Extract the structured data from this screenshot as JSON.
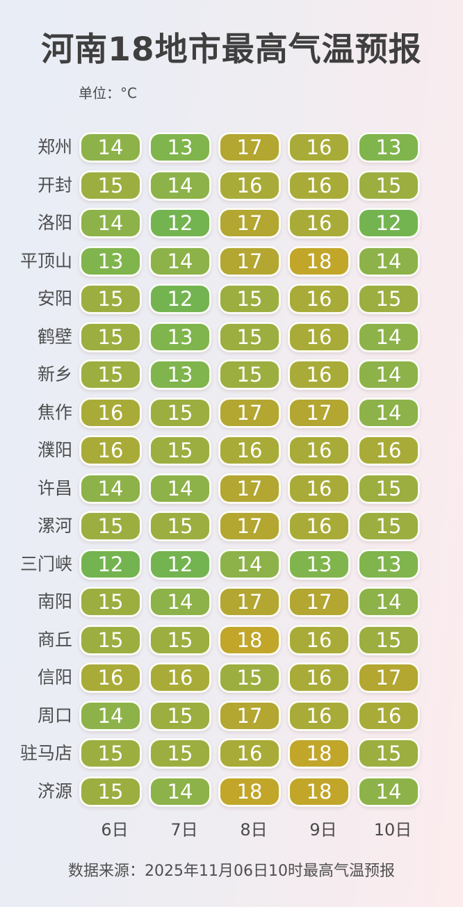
{
  "title": "河南18地市最高气温预报",
  "unit_label": "单位：°C",
  "source": "数据来源：2025年11月06日10时最高气温预报",
  "chart_data": {
    "type": "heatmap",
    "title": "河南18地市最高气温预报",
    "unit": "°C",
    "columns": [
      "6日",
      "7日",
      "8日",
      "9日",
      "10日"
    ],
    "rows": [
      {
        "city": "郑州",
        "values": [
          14,
          13,
          17,
          16,
          13
        ]
      },
      {
        "city": "开封",
        "values": [
          15,
          14,
          16,
          16,
          15
        ]
      },
      {
        "city": "洛阳",
        "values": [
          14,
          12,
          17,
          16,
          12
        ]
      },
      {
        "city": "平顶山",
        "values": [
          13,
          14,
          17,
          18,
          14
        ]
      },
      {
        "city": "安阳",
        "values": [
          15,
          12,
          15,
          16,
          15
        ]
      },
      {
        "city": "鹤壁",
        "values": [
          15,
          13,
          15,
          16,
          14
        ]
      },
      {
        "city": "新乡",
        "values": [
          15,
          13,
          15,
          16,
          14
        ]
      },
      {
        "city": "焦作",
        "values": [
          16,
          15,
          17,
          17,
          14
        ]
      },
      {
        "city": "濮阳",
        "values": [
          16,
          15,
          16,
          16,
          16
        ]
      },
      {
        "city": "许昌",
        "values": [
          14,
          14,
          17,
          16,
          15
        ]
      },
      {
        "city": "漯河",
        "values": [
          15,
          15,
          17,
          16,
          15
        ]
      },
      {
        "city": "三门峡",
        "values": [
          12,
          12,
          14,
          13,
          13
        ]
      },
      {
        "city": "南阳",
        "values": [
          15,
          14,
          17,
          17,
          14
        ]
      },
      {
        "city": "商丘",
        "values": [
          15,
          15,
          18,
          16,
          15
        ]
      },
      {
        "city": "信阳",
        "values": [
          16,
          16,
          15,
          16,
          17
        ]
      },
      {
        "city": "周口",
        "values": [
          14,
          15,
          17,
          16,
          16
        ]
      },
      {
        "city": "驻马店",
        "values": [
          15,
          15,
          16,
          18,
          15
        ]
      },
      {
        "city": "济源",
        "values": [
          15,
          14,
          18,
          18,
          14
        ]
      }
    ],
    "value_range": [
      12,
      18
    ],
    "legend_position": "none",
    "grid": false
  },
  "colors": {
    "temp_colors": {
      "12": "#74b450",
      "13": "#80b44c",
      "14": "#8db249",
      "15": "#9cae40",
      "16": "#a9ab38",
      "17": "#b3a631",
      "18": "#c1a62a"
    },
    "cell_text": "#ffffff",
    "title_text": "#3f3f3f",
    "background_left": "#e8edf6",
    "background_right": "#fcecee"
  }
}
